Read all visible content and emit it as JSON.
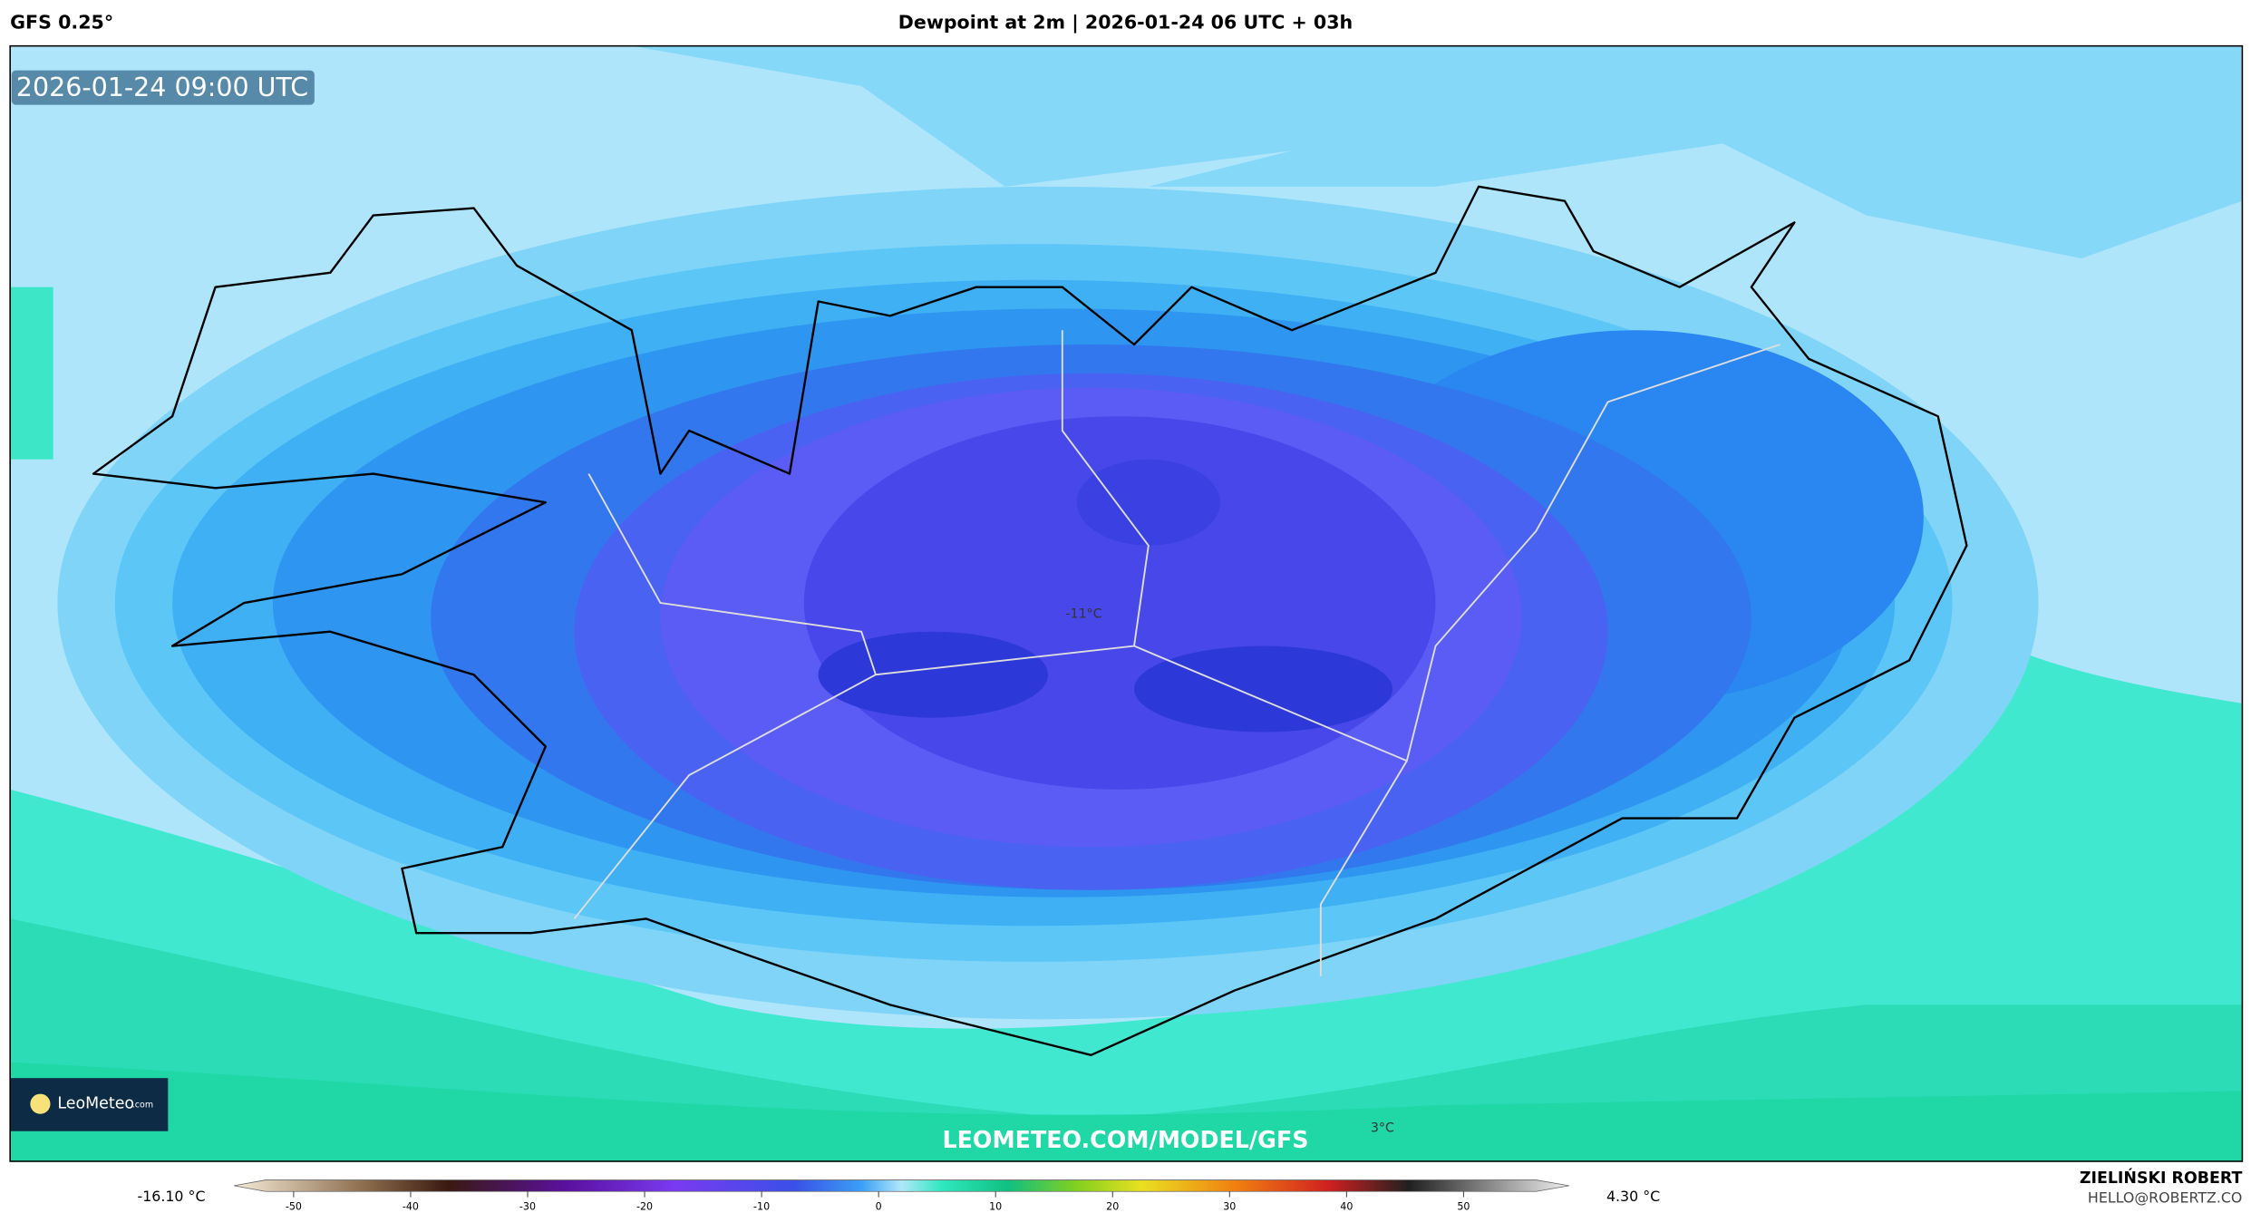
{
  "header": {
    "model": "GFS 0.25°",
    "title": "Dewpoint at 2m | 2026-01-24 06 UTC + 03h"
  },
  "map": {
    "valid_time": "2026-01-24 09:00 UTC",
    "labels": [
      "-11°C",
      "3°C"
    ],
    "watermark": "LEOMETEO.COM/MODEL/GFS",
    "logo": {
      "name": "LeoMeteo",
      "suffix": ".com"
    }
  },
  "colorbar": {
    "min_label": "-16.10 °C",
    "max_label": "4.30 °C",
    "ticks": [
      -50,
      -40,
      -30,
      -20,
      -10,
      0,
      10,
      20,
      30,
      40,
      50
    ]
  },
  "footer": {
    "author": "ZIELIŃSKI ROBERT",
    "email": "HELLO@ROBERTZ.CO"
  }
}
